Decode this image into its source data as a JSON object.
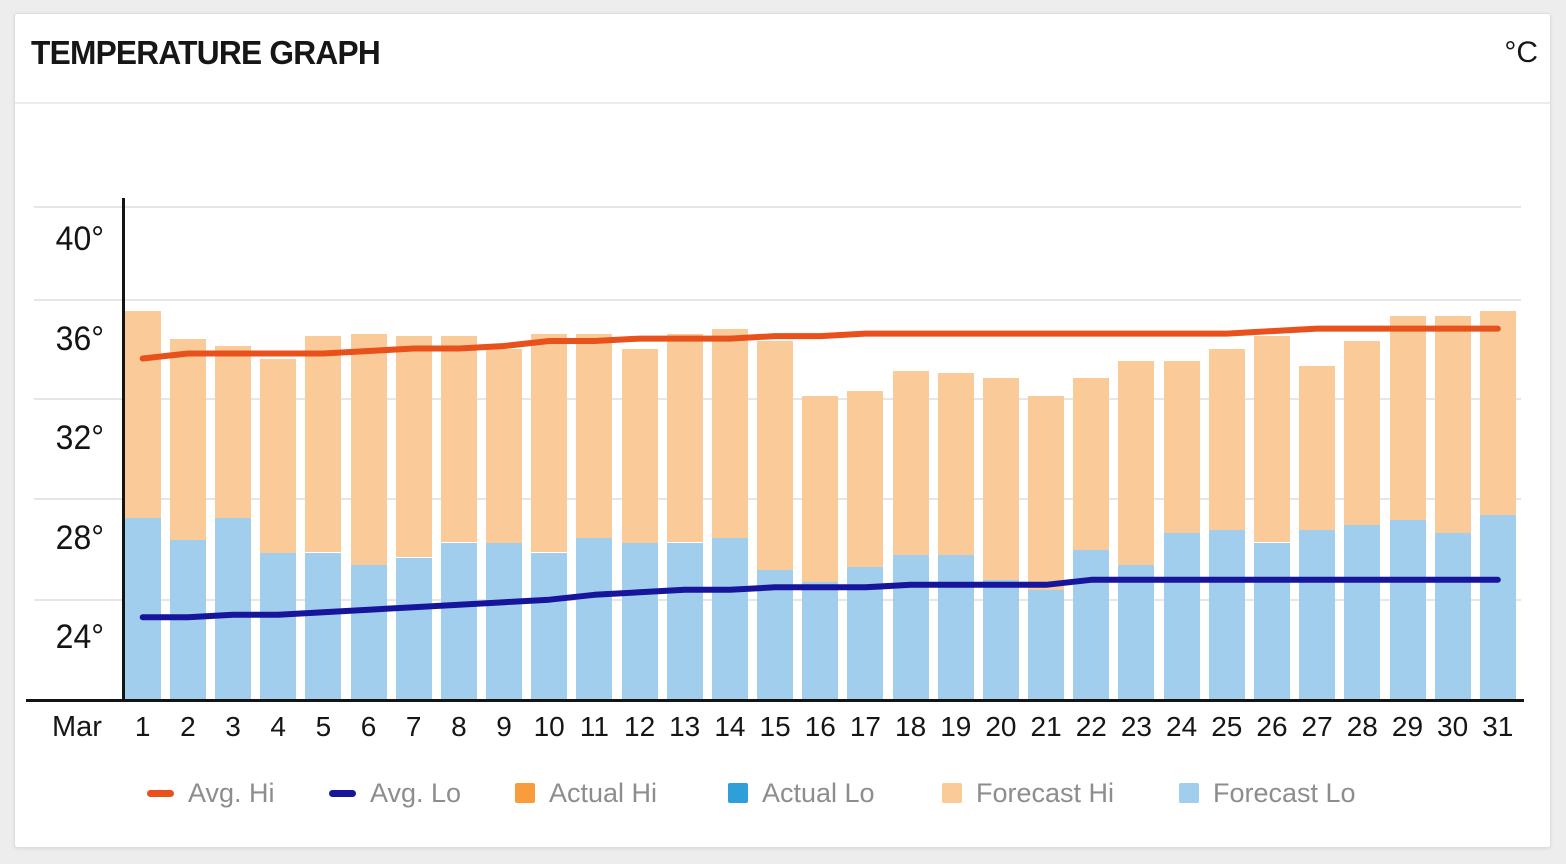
{
  "header": {
    "title": "TEMPERATURE GRAPH",
    "unit": "°C"
  },
  "x_axis": {
    "month_label": "Mar",
    "day_labels": [
      "1",
      "2",
      "3",
      "4",
      "5",
      "6",
      "7",
      "8",
      "9",
      "10",
      "11",
      "12",
      "13",
      "14",
      "15",
      "16",
      "17",
      "18",
      "19",
      "20",
      "21",
      "22",
      "23",
      "24",
      "25",
      "26",
      "27",
      "28",
      "29",
      "30",
      "31"
    ]
  },
  "y_axis": {
    "tick_labels": [
      "40°",
      "36°",
      "32°",
      "28°",
      "24°"
    ],
    "tick_values": [
      40,
      36,
      32,
      28,
      24
    ]
  },
  "legend": [
    {
      "label": "Avg. Hi",
      "marker": "dash",
      "color": "#E8501C"
    },
    {
      "label": "Avg. Lo",
      "marker": "dash",
      "color": "#16159C"
    },
    {
      "label": "Actual Hi",
      "marker": "square",
      "color": "#F89C3C"
    },
    {
      "label": "Actual Lo",
      "marker": "square",
      "color": "#2E9FD8"
    },
    {
      "label": "Forecast Hi",
      "marker": "square",
      "color": "#FACB98"
    },
    {
      "label": "Forecast Lo",
      "marker": "square",
      "color": "#A0CEEC"
    }
  ],
  "chart_data": {
    "type": "bar",
    "title": "TEMPERATURE GRAPH",
    "unit": "°C",
    "month": "Mar",
    "x": [
      1,
      2,
      3,
      4,
      5,
      6,
      7,
      8,
      9,
      10,
      11,
      12,
      13,
      14,
      15,
      16,
      17,
      18,
      19,
      20,
      21,
      22,
      23,
      24,
      25,
      26,
      27,
      28,
      29,
      30,
      31
    ],
    "ylim": [
      21.5,
      41.6
    ],
    "grid": true,
    "legend_position": "bottom",
    "series": [
      {
        "name": "Avg. Hi",
        "type": "line",
        "color": "#E8501C",
        "values": [
          35.2,
          35.4,
          35.4,
          35.4,
          35.4,
          35.5,
          35.6,
          35.6,
          35.7,
          35.9,
          35.9,
          36.0,
          36.0,
          36.0,
          36.1,
          36.1,
          36.2,
          36.2,
          36.2,
          36.2,
          36.2,
          36.2,
          36.2,
          36.2,
          36.2,
          36.3,
          36.4,
          36.4,
          36.4,
          36.4,
          36.4
        ]
      },
      {
        "name": "Avg. Lo",
        "type": "line",
        "color": "#16159C",
        "values": [
          24.8,
          24.8,
          24.9,
          24.9,
          25.0,
          25.1,
          25.2,
          25.3,
          25.4,
          25.5,
          25.7,
          25.8,
          25.9,
          25.9,
          26.0,
          26.0,
          26.0,
          26.1,
          26.1,
          26.1,
          26.1,
          26.3,
          26.3,
          26.3,
          26.3,
          26.3,
          26.3,
          26.3,
          26.3,
          26.3,
          26.3
        ]
      },
      {
        "name": "Actual Hi",
        "type": "bar",
        "color": "#F89C3C",
        "values": []
      },
      {
        "name": "Actual Lo",
        "type": "bar",
        "color": "#2E9FD8",
        "values": []
      },
      {
        "name": "Forecast Hi",
        "type": "bar",
        "color": "#FACB98",
        "values": [
          37.1,
          36.0,
          35.7,
          35.2,
          36.1,
          36.2,
          36.1,
          36.1,
          35.6,
          36.2,
          36.2,
          35.6,
          36.2,
          36.4,
          35.9,
          33.7,
          33.9,
          34.7,
          34.6,
          34.4,
          33.7,
          34.4,
          35.1,
          35.1,
          35.6,
          36.1,
          34.9,
          35.9,
          36.9,
          36.9,
          37.1
        ]
      },
      {
        "name": "Forecast Lo",
        "type": "bar",
        "color": "#A0CEEC",
        "values": [
          28.8,
          27.9,
          28.8,
          27.4,
          27.4,
          26.9,
          27.2,
          27.8,
          27.8,
          27.4,
          28.0,
          27.8,
          27.8,
          28.0,
          26.7,
          26.2,
          26.8,
          27.3,
          27.3,
          26.3,
          25.9,
          27.5,
          26.9,
          28.2,
          28.3,
          27.8,
          28.3,
          28.5,
          28.7,
          28.2,
          28.9
        ]
      }
    ]
  }
}
